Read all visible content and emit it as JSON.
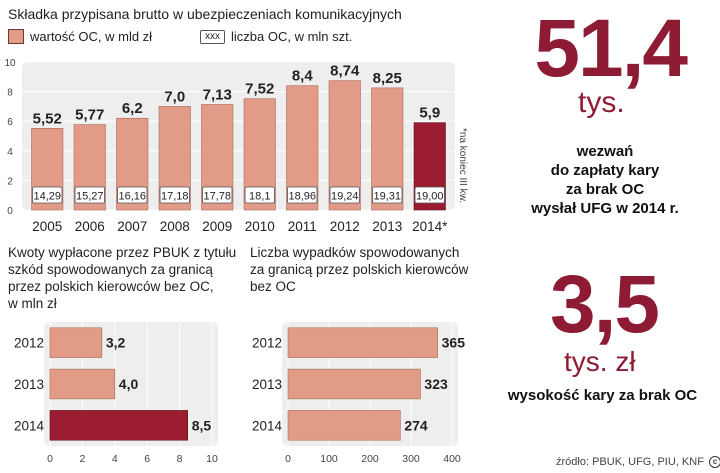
{
  "main_chart": {
    "title": "Składka przypisana brutto w ubezpieczeniach komunikacyjnych",
    "legend": {
      "value_label": "wartość OC, w mld zł",
      "count_box": "xxx",
      "count_label": "liczba OC, w mln szt."
    },
    "note": "*na koniec III kw.",
    "highlight_color": "#9b1b30",
    "bar_color": "#e19b87"
  },
  "left_chart": {
    "title_lines": [
      "Kwoty wypłacone przez PBUK z tytułu",
      "szkód spowodowanych za granicą",
      "przez polskich kierowców bez OC,",
      "w mln zł"
    ]
  },
  "right_chart": {
    "title_lines": [
      "Liczba wypadków spowodowanych",
      "za granicą przez polskich kierowców",
      "bez OC"
    ]
  },
  "stat1": {
    "number": "51,4",
    "unit": "tys.",
    "lines": [
      "wezwań",
      "do zapłaty kary",
      "za brak OC",
      "wysłał UFG w 2014 r."
    ]
  },
  "stat2": {
    "number": "3,5",
    "unit": "tys. zł",
    "text": "wysokość kary za brak OC"
  },
  "source": {
    "text": "źródło: PBUK, UFG, PIU, KNF",
    "icons": [
      "cc-icon",
      "p-icon"
    ]
  },
  "chart_data": [
    {
      "type": "bar",
      "categories": [
        "2005",
        "2006",
        "2007",
        "2008",
        "2009",
        "2010",
        "2011",
        "2012",
        "2013",
        "2014*"
      ],
      "series": [
        {
          "name": "wartość OC, w mld zł",
          "values": [
            5.52,
            5.77,
            6.2,
            7.0,
            7.13,
            7.52,
            8.4,
            8.74,
            8.25,
            5.9
          ]
        },
        {
          "name": "liczba OC, w mln szt.",
          "values": [
            14.29,
            15.27,
            16.16,
            17.18,
            17.78,
            18.1,
            18.96,
            19.24,
            19.31,
            19.0
          ]
        }
      ],
      "value_labels": [
        "5,52",
        "5,77",
        "6,2",
        "7,0",
        "7,13",
        "7,52",
        "8,4",
        "8,74",
        "8,25",
        "5,9"
      ],
      "count_labels": [
        "14,29",
        "15,27",
        "16,16",
        "17,18",
        "17,78",
        "18,1",
        "18,96",
        "19,24",
        "19,31",
        "19,00"
      ],
      "yticks": [
        "0",
        "2",
        "4",
        "6",
        "8",
        "10"
      ],
      "ylim": [
        0,
        10
      ],
      "highlight_index": 9,
      "grid": true
    },
    {
      "type": "bar",
      "orientation": "horizontal",
      "categories": [
        "2012",
        "2013",
        "2014"
      ],
      "values": [
        3.2,
        4.0,
        8.5
      ],
      "value_labels": [
        "3,2",
        "4,0",
        "8,5"
      ],
      "xticks": [
        "0",
        "2",
        "4",
        "6",
        "8",
        "10"
      ],
      "xlim": [
        0,
        10
      ],
      "highlight_index": 2,
      "grid": true
    },
    {
      "type": "bar",
      "orientation": "horizontal",
      "categories": [
        "2012",
        "2013",
        "2014"
      ],
      "values": [
        365,
        323,
        274
      ],
      "value_labels": [
        "365",
        "323",
        "274"
      ],
      "xticks": [
        "0",
        "100",
        "200",
        "300",
        "400"
      ],
      "xlim": [
        0,
        400
      ],
      "grid": true
    }
  ]
}
